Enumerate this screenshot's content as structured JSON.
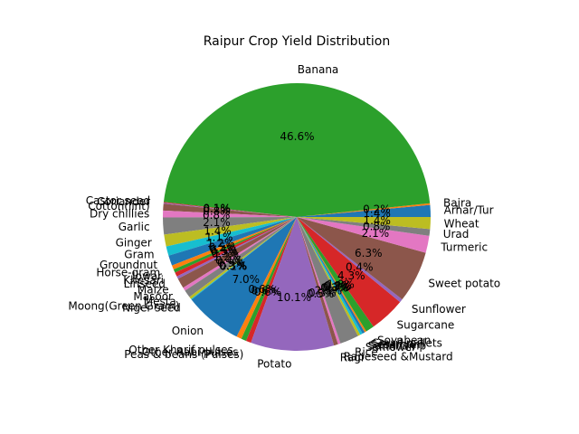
{
  "chart_data": {
    "type": "pie",
    "title": "Raipur Crop Yield Distribution",
    "start_angle_deg": 0,
    "direction": "counterclockwise",
    "autopct_format": "{:.1f}%",
    "palette": [
      "#1f77b4",
      "#ff7f0e",
      "#2ca02c",
      "#d62728",
      "#9467bd",
      "#8c564b",
      "#e377c2",
      "#7f7f7f",
      "#bcbd22",
      "#17becf"
    ],
    "slices": [
      {
        "label": "Arhar/Tur",
        "value": 1.4
      },
      {
        "label": "Bajra",
        "value": 0.2
      },
      {
        "label": "Banana",
        "value": 45.4
      },
      {
        "label": "Castor seed",
        "value": 0.1
      },
      {
        "label": "Coriander",
        "value": 0.1
      },
      {
        "label": "Cotton(lint)",
        "value": 0.8
      },
      {
        "label": "Dry chillies",
        "value": 0.8
      },
      {
        "label": "Garlic",
        "value": 2.0
      },
      {
        "label": "Ginger",
        "value": 1.4
      },
      {
        "label": "Gram",
        "value": 1.1
      },
      {
        "label": "Groundnut",
        "value": 1.2
      },
      {
        "label": "Horse-gram",
        "value": 0.5
      },
      {
        "label": "Jowar",
        "value": 0.4
      },
      {
        "label": "Khesari",
        "value": 0.5
      },
      {
        "label": "Linseed",
        "value": 0.3
      },
      {
        "label": "Maize",
        "value": 1.2
      },
      {
        "label": "Masoor",
        "value": 0.4
      },
      {
        "label": "Mesta",
        "value": 0.9
      },
      {
        "label": "Moong(Green Gram)",
        "value": 0.3
      },
      {
        "label": "Niger seed",
        "value": 0.1
      },
      {
        "label": "Onion",
        "value": 6.8
      },
      {
        "label": "Other Kharif pulses",
        "value": 0.6
      },
      {
        "label": "Other Rabi pulses",
        "value": 0.6
      },
      {
        "label": "Peas & beans (Pulses)",
        "value": 0.6
      },
      {
        "label": "Potato",
        "value": 9.8
      },
      {
        "label": "Ragi",
        "value": 0.5
      },
      {
        "label": "Rapeseed &Mustard",
        "value": 0.3
      },
      {
        "label": "Rice",
        "value": 2.2
      },
      {
        "label": "Safflower",
        "value": 0.3
      },
      {
        "label": "Sannhamp",
        "value": 0.3
      },
      {
        "label": "Sesamum",
        "value": 0.3
      },
      {
        "label": "Small millets",
        "value": 0.2
      },
      {
        "label": "Soyabean",
        "value": 1.0
      },
      {
        "label": "Sugarcane",
        "value": 4.2
      },
      {
        "label": "Sunflower",
        "value": 0.4
      },
      {
        "label": "Sweet potato",
        "value": 6.1
      },
      {
        "label": "Turmeric",
        "value": 2.0
      },
      {
        "label": "Urad",
        "value": 0.8
      },
      {
        "label": "Wheat",
        "value": 1.4
      }
    ]
  }
}
